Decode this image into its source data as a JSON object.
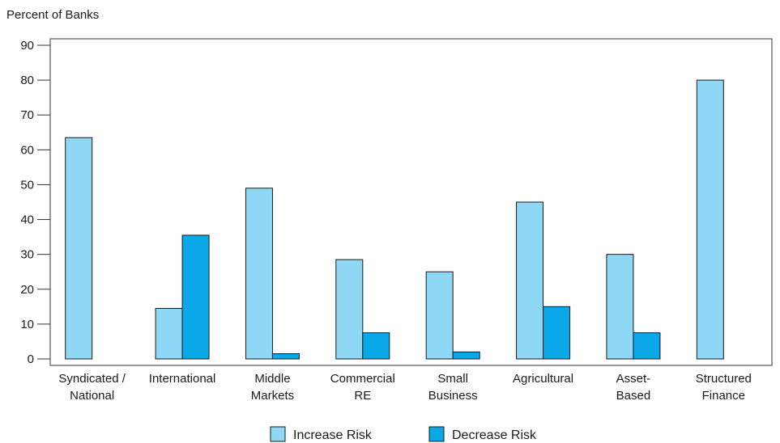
{
  "chart_data": {
    "type": "bar",
    "ylabel": "Percent of Banks",
    "ylim": [
      0,
      90
    ],
    "yticks": [
      0,
      10,
      20,
      30,
      40,
      50,
      60,
      70,
      80,
      90
    ],
    "categories": [
      [
        "Syndicated /",
        "National"
      ],
      [
        "International"
      ],
      [
        "Middle",
        "Markets"
      ],
      [
        "Commercial",
        "RE"
      ],
      [
        "Small",
        "Business"
      ],
      [
        "Agricultural"
      ],
      [
        "Asset-",
        "Based"
      ],
      [
        "Structured",
        "Finance"
      ]
    ],
    "series": [
      {
        "name": "Increase Risk",
        "color": "#8fd8f5",
        "values": [
          63.5,
          14.5,
          49,
          28.5,
          25,
          45,
          30,
          80
        ]
      },
      {
        "name": "Decrease Risk",
        "color": "#0aa8e8",
        "values": [
          0,
          35.5,
          1.5,
          7.5,
          2,
          15,
          7.5,
          0
        ]
      }
    ],
    "legend_position": "bottom-center",
    "grid": false
  }
}
